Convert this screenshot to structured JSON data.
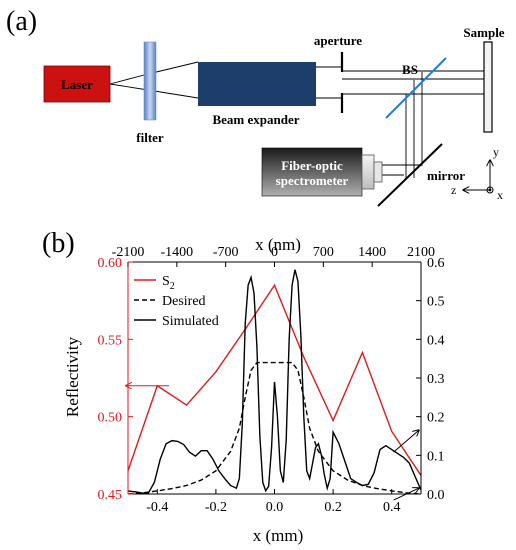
{
  "panel_a": {
    "label": "(a)",
    "components": {
      "laser": "Laser",
      "filter": "filter",
      "beam_expander": "Beam expander",
      "aperture": "aperture",
      "bs": "BS",
      "sample": "Sample",
      "spectrometer_line1": "Fiber-optic",
      "spectrometer_line2": "spectrometer",
      "mirror": "mirror"
    },
    "axes": {
      "y": "y",
      "z": "z",
      "x": "x"
    },
    "colors": {
      "laser": "#cc1111",
      "beam_expander": "#1d3d6b",
      "bs": "#2a7bd0",
      "filter": "#8aa9d8"
    }
  },
  "panel_b": {
    "label": "(b)",
    "colors": {
      "s2": "#e31a1c",
      "sim": "#000000",
      "desired": "#000000"
    }
  },
  "chart_data": {
    "type": "line",
    "xlabel": "x (mm)",
    "x_top_label": "x (nm)",
    "ylabel_left": "Reflectivity",
    "xlim": [
      -0.5,
      0.5
    ],
    "x_ticks": [
      -0.4,
      -0.2,
      0.0,
      0.2,
      0.4
    ],
    "x_tick_labels": [
      "-0.4",
      "-0.2",
      "0.0",
      "0.2",
      "0.4"
    ],
    "x_top_ticks": [
      -2100,
      -1400,
      -700,
      0,
      700,
      1400,
      2100
    ],
    "x_top_tick_labels": [
      "-2100",
      "-1400",
      "-700",
      "0",
      "700",
      "1400",
      "2100"
    ],
    "ylim_left": [
      0.45,
      0.6
    ],
    "y_left_ticks": [
      0.45,
      0.5,
      0.55,
      0.6
    ],
    "y_left_tick_labels": [
      "0.45",
      "0.50",
      "0.55",
      "0.60"
    ],
    "ylim_right": [
      0.0,
      0.6
    ],
    "y_right_ticks": [
      0.0,
      0.1,
      0.2,
      0.3,
      0.4,
      0.5,
      0.6
    ],
    "y_right_tick_labels": [
      "0.0",
      "0.1",
      "0.2",
      "0.3",
      "0.4",
      "0.5",
      "0.6"
    ],
    "legend_position": "top-left",
    "series": [
      {
        "name": "S2",
        "axis": "left",
        "style": "solid",
        "x": [
          -0.5,
          -0.4,
          -0.3,
          -0.2,
          -0.1,
          0.0,
          0.1,
          0.2,
          0.3,
          0.4,
          0.5
        ],
        "y": [
          0.465,
          0.52,
          0.5075,
          0.529,
          0.5565,
          0.585,
          0.5385,
          0.4975,
          0.5415,
          0.4905,
          0.462
        ]
      },
      {
        "name": "Desired",
        "axis": "right",
        "style": "dashed",
        "x": [
          -0.5,
          -0.45,
          -0.4,
          -0.35,
          -0.3,
          -0.25,
          -0.2,
          -0.15,
          -0.12,
          -0.1,
          -0.08,
          -0.06,
          -0.05,
          0.0,
          0.05,
          0.06,
          0.08,
          0.1,
          0.12,
          0.15,
          0.2,
          0.25,
          0.3,
          0.35,
          0.4,
          0.45,
          0.5
        ],
        "y": [
          0.0,
          0.003,
          0.008,
          0.014,
          0.022,
          0.036,
          0.06,
          0.11,
          0.17,
          0.25,
          0.32,
          0.34,
          0.34,
          0.34,
          0.34,
          0.34,
          0.32,
          0.25,
          0.17,
          0.11,
          0.06,
          0.036,
          0.022,
          0.014,
          0.008,
          0.003,
          0.0
        ]
      },
      {
        "name": "Simulated",
        "axis": "right",
        "style": "solid",
        "x": [
          -0.5,
          -0.47,
          -0.45,
          -0.43,
          -0.41,
          -0.39,
          -0.37,
          -0.35,
          -0.33,
          -0.31,
          -0.29,
          -0.27,
          -0.25,
          -0.23,
          -0.21,
          -0.19,
          -0.17,
          -0.15,
          -0.13,
          -0.12,
          -0.11,
          -0.1,
          -0.09,
          -0.08,
          -0.07,
          -0.06,
          -0.05,
          -0.04,
          -0.03,
          -0.02,
          -0.01,
          0.0,
          0.01,
          0.02,
          0.03,
          0.04,
          0.05,
          0.06,
          0.07,
          0.08,
          0.09,
          0.1,
          0.11,
          0.12,
          0.13,
          0.14,
          0.15,
          0.16,
          0.17,
          0.18,
          0.19,
          0.2,
          0.22,
          0.24,
          0.26,
          0.28,
          0.3,
          0.32,
          0.34,
          0.36,
          0.38,
          0.4,
          0.42,
          0.44,
          0.46,
          0.48,
          0.5
        ],
        "y": [
          0.008,
          0.005,
          0.002,
          0.003,
          0.03,
          0.09,
          0.13,
          0.138,
          0.136,
          0.128,
          0.108,
          0.098,
          0.112,
          0.112,
          0.09,
          0.06,
          0.04,
          0.022,
          0.015,
          0.04,
          0.18,
          0.44,
          0.54,
          0.56,
          0.52,
          0.38,
          0.15,
          0.03,
          0.008,
          0.02,
          0.12,
          0.29,
          0.2,
          0.06,
          0.03,
          0.14,
          0.4,
          0.54,
          0.58,
          0.55,
          0.41,
          0.2,
          0.06,
          0.04,
          0.08,
          0.12,
          0.13,
          0.1,
          0.05,
          0.015,
          0.04,
          0.16,
          0.13,
          0.085,
          0.04,
          0.03,
          0.022,
          0.025,
          0.055,
          0.115,
          0.125,
          0.115,
          0.105,
          0.095,
          0.08,
          0.045,
          0.01
        ]
      }
    ],
    "arrows": [
      {
        "target_axis": "left",
        "x": -0.48,
        "y_left": 0.52
      },
      {
        "target_axis": "right",
        "x": 0.42,
        "y_right": 0.155
      },
      {
        "target_axis": "right",
        "x": 0.42,
        "y_right": 0.005
      }
    ]
  }
}
